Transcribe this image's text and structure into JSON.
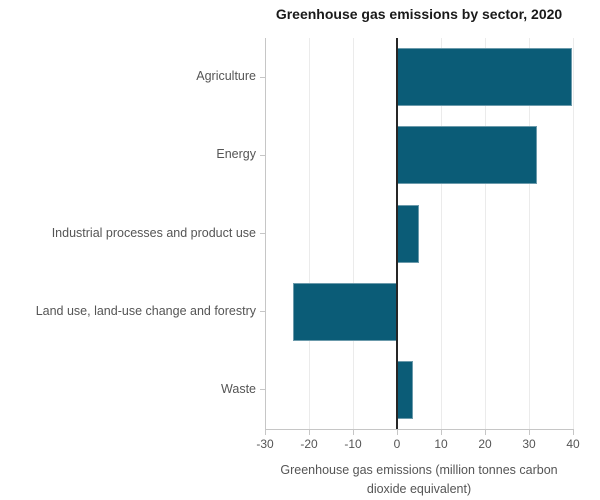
{
  "chart_data": {
    "type": "bar",
    "orientation": "horizontal",
    "title": "Greenhouse gas emissions by sector, 2020",
    "categories": [
      "Agriculture",
      "Energy",
      "Industrial processes and product use",
      "Land use, land-use change and forestry",
      "Waste"
    ],
    "values": [
      39.8,
      31.8,
      4.9,
      -23.7,
      3.7
    ],
    "xlabel": "Greenhouse gas emissions (million tonnes carbon dioxide equivalent)",
    "ylabel": "",
    "xlim": [
      -30,
      40
    ],
    "xticks": [
      -30,
      -20,
      -10,
      0,
      10,
      20,
      30,
      40
    ],
    "xtick_labels": [
      "-30",
      "-20",
      "-10",
      "0",
      "10",
      "20",
      "30",
      "40"
    ],
    "grid": true,
    "legend": false,
    "colors": {
      "bar_fill": "#0b5c77",
      "bar_border": "#6b9aab",
      "grid_line": "#ebebeb",
      "zero_line": "#262626",
      "axis_line": "#c6c6c6",
      "tick_mark": "#c6c6c6",
      "label_text": "#555555",
      "title_text": "#1a1a1a"
    }
  }
}
